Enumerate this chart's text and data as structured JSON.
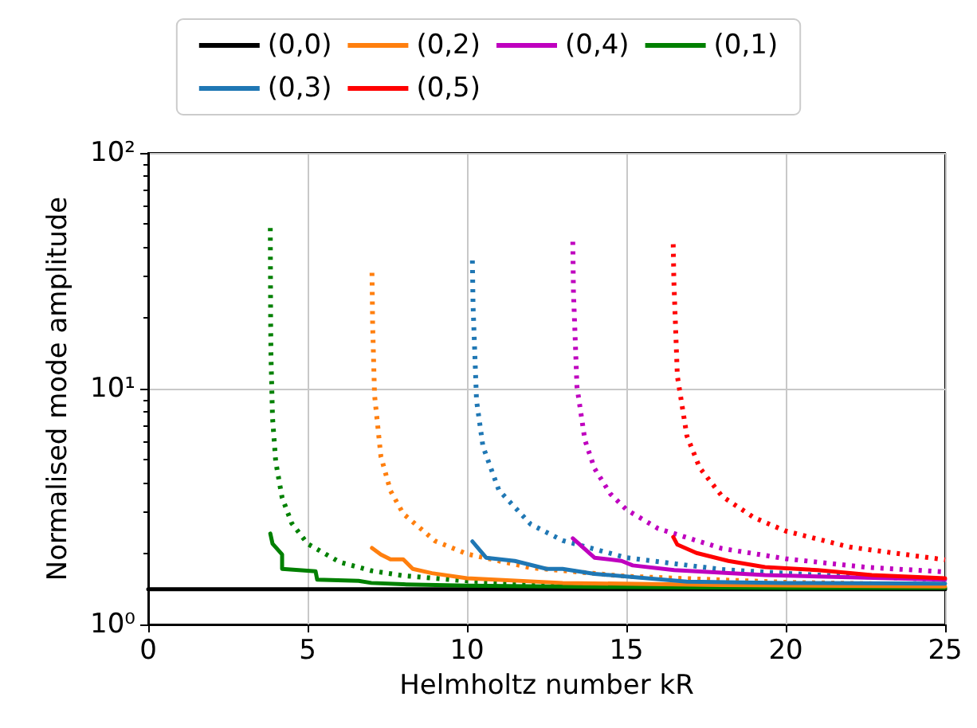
{
  "chart_data": {
    "type": "line",
    "xlabel": "Helmholtz number kR",
    "ylabel": "Normalised mode amplitude",
    "log": "y",
    "grid": true,
    "legend": "top",
    "marker": "none",
    "xlim": [
      0,
      25
    ],
    "xticks": [
      0,
      5,
      10,
      15,
      20,
      25
    ],
    "ylim": [
      1,
      100
    ],
    "yticks": [
      {
        "value": 1,
        "label": "10⁰"
      },
      {
        "value": 10,
        "label": "10¹"
      },
      {
        "value": 100,
        "label": "10²"
      }
    ],
    "series": [
      {
        "name": "(0,0)",
        "color": "#000000",
        "line_style": "solid",
        "x": [
          0,
          25
        ],
        "values": [
          1.41,
          1.41
        ]
      },
      {
        "name": "(0,1)",
        "color": "#008000",
        "line_style": "solid",
        "x": [
          3.83,
          3.9,
          4.2,
          4.2,
          5.25,
          5.3,
          6.6,
          7,
          8,
          10,
          15,
          20,
          25
        ],
        "values": [
          2.43,
          2.2,
          1.98,
          1.72,
          1.68,
          1.55,
          1.53,
          1.5,
          1.48,
          1.46,
          1.44,
          1.43,
          1.43
        ]
      },
      {
        "name": "(0,2)",
        "color": "#ff7f0e",
        "line_style": "solid",
        "x": [
          7.02,
          7.3,
          7.6,
          8,
          8.3,
          8.9,
          10,
          13,
          18,
          25
        ],
        "values": [
          2.11,
          1.98,
          1.89,
          1.89,
          1.72,
          1.65,
          1.57,
          1.5,
          1.47,
          1.45
        ]
      },
      {
        "name": "(0,3)",
        "color": "#1f77b4",
        "line_style": "solid",
        "x": [
          10.17,
          10.6,
          11.5,
          12.5,
          13,
          14,
          16.9,
          20,
          25
        ],
        "values": [
          2.25,
          1.92,
          1.86,
          1.72,
          1.72,
          1.64,
          1.52,
          1.5,
          1.49
        ]
      },
      {
        "name": "(0,4)",
        "color": "#bf00bf",
        "line_style": "solid",
        "x": [
          13.32,
          14,
          14.85,
          15.2,
          16.5,
          19.35,
          25
        ],
        "values": [
          2.32,
          1.92,
          1.86,
          1.78,
          1.7,
          1.62,
          1.55
        ]
      },
      {
        "name": "(0,5)",
        "color": "#ff0000",
        "line_style": "solid",
        "x": [
          16.47,
          16.6,
          17.2,
          18.2,
          19.35,
          21,
          22.7,
          25
        ],
        "values": [
          2.35,
          2.18,
          2.01,
          1.86,
          1.75,
          1.7,
          1.62,
          1.57
        ]
      },
      {
        "color": "#008000",
        "line_style": "dotted",
        "x": [
          3.83,
          3.84,
          3.85,
          3.9,
          4,
          4.2,
          4.5,
          5,
          6,
          7,
          8,
          10,
          12,
          15,
          20,
          25
        ],
        "values": [
          48,
          19.6,
          13.9,
          7.5,
          4.9,
          3.45,
          2.69,
          2.2,
          1.84,
          1.69,
          1.61,
          1.53,
          1.49,
          1.46,
          1.44,
          1.42
        ]
      },
      {
        "color": "#ff7f0e",
        "line_style": "dotted",
        "x": [
          7.02,
          7.04,
          7.1,
          7.3,
          7.6,
          8,
          9,
          10,
          12,
          15,
          20,
          25
        ],
        "values": [
          31,
          18.8,
          9.4,
          5.15,
          3.69,
          2.95,
          2.26,
          1.99,
          1.74,
          1.6,
          1.51,
          1.47
        ]
      },
      {
        "color": "#1f77b4",
        "line_style": "dotted",
        "x": [
          10.17,
          10.19,
          10.3,
          10.5,
          11,
          12,
          13,
          15,
          18,
          21,
          25
        ],
        "values": [
          35,
          22.6,
          8.9,
          5.7,
          3.71,
          2.66,
          2.27,
          1.92,
          1.71,
          1.62,
          1.55
        ]
      },
      {
        "color": "#bf00bf",
        "line_style": "dotted",
        "x": [
          13.32,
          13.34,
          13.45,
          13.7,
          14,
          14.5,
          15,
          16,
          18,
          20,
          22.5,
          25
        ],
        "values": [
          42,
          25.8,
          10.2,
          6.05,
          4.59,
          3.58,
          3.07,
          2.55,
          2.1,
          1.9,
          1.75,
          1.67
        ]
      },
      {
        "color": "#ff0000",
        "line_style": "dotted",
        "x": [
          16.47,
          16.49,
          16.6,
          16.9,
          17.3,
          18,
          19,
          20,
          22,
          25
        ],
        "values": [
          41,
          28.7,
          11.3,
          6.3,
          4.62,
          3.5,
          2.84,
          2.49,
          2.13,
          1.88
        ]
      }
    ]
  }
}
